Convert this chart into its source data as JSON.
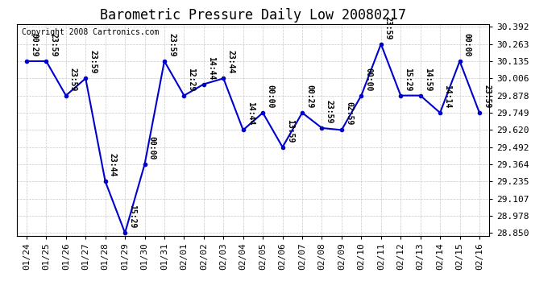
{
  "title": "Barometric Pressure Daily Low 20080217",
  "copyright": "Copyright 2008 Cartronics.com",
  "x_labels": [
    "01/24",
    "01/25",
    "01/26",
    "01/27",
    "01/28",
    "01/29",
    "01/30",
    "01/31",
    "02/01",
    "02/02",
    "02/03",
    "02/04",
    "02/05",
    "02/06",
    "02/07",
    "02/08",
    "02/09",
    "02/10",
    "02/11",
    "02/12",
    "02/13",
    "02/14",
    "02/15",
    "02/16"
  ],
  "y_values": [
    30.135,
    30.135,
    29.878,
    30.006,
    29.235,
    28.85,
    29.364,
    30.135,
    29.878,
    29.963,
    30.006,
    29.62,
    29.749,
    29.492,
    29.749,
    29.635,
    29.62,
    29.878,
    30.263,
    29.878,
    29.878,
    29.749,
    30.135,
    29.749
  ],
  "point_labels": [
    "00:29",
    "23:59",
    "23:59",
    "23:59",
    "23:44",
    "15:29",
    "00:00",
    "23:59",
    "12:29",
    "14:44",
    "23:44",
    "14:44",
    "00:00",
    "13:59",
    "00:29",
    "23:59",
    "02:59",
    "00:00",
    "23:59",
    "15:29",
    "14:59",
    "14:14",
    "00:00",
    "23:59"
  ],
  "ylim_low": 28.85,
  "ylim_high": 30.392,
  "yticks": [
    30.392,
    30.263,
    30.135,
    30.006,
    29.878,
    29.749,
    29.62,
    29.492,
    29.364,
    29.235,
    29.107,
    28.978,
    28.85
  ],
  "line_color": "#0000CC",
  "marker_color": "#0000CC",
  "bg_color": "#FFFFFF",
  "grid_color": "#C8C8C8",
  "title_fontsize": 12,
  "tick_label_fontsize": 8,
  "point_label_fontsize": 7,
  "copyright_fontsize": 7
}
